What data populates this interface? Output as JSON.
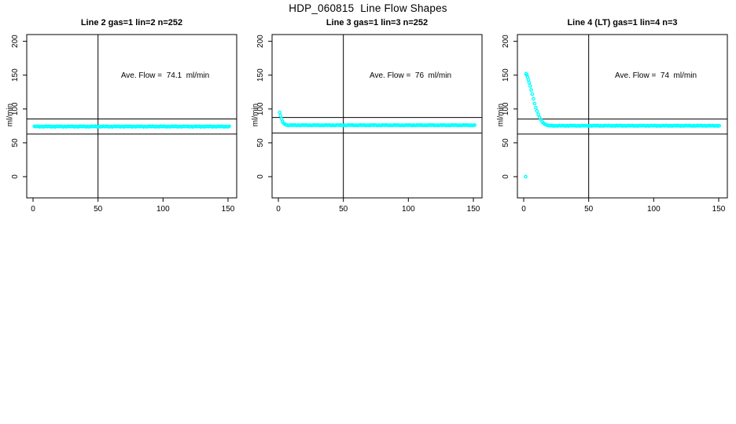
{
  "title": "HDP_060815  Line Flow Shapes",
  "colors": {
    "marker": "#00FFFF",
    "axis": "#000000",
    "background": "#FFFFFF"
  },
  "chart_data": [
    {
      "type": "scatter",
      "title": "Line 2 gas=1 lin=2 n=252",
      "annotation": "Ave. Flow =  74.1  ml/min",
      "ave_flow_ml_min": 74.1,
      "n": 252,
      "ylabel": "ml/min",
      "xlabel": "",
      "xticks": [
        0,
        50,
        100,
        150
      ],
      "yticks": [
        0,
        50,
        100,
        150,
        200
      ],
      "xlim": [
        -5,
        157
      ],
      "ylim": [
        -31,
        210
      ],
      "vline_x": 50,
      "hlines": [
        85.2,
        63.0
      ],
      "grid": false,
      "legend": "none",
      "series": [
        {
          "name": "flow",
          "segments": [
            {
              "x0": 1,
              "x1": 151,
              "step": 1,
              "y": 74.1,
              "jitter": 0.6
            }
          ]
        }
      ]
    },
    {
      "type": "scatter",
      "title": "Line 3 gas=1 lin=3 n=252",
      "annotation": "Ave. Flow =  76  ml/min",
      "ave_flow_ml_min": 76,
      "n": 252,
      "ylabel": "ml/min",
      "xlabel": "",
      "xticks": [
        0,
        50,
        100,
        150
      ],
      "yticks": [
        0,
        50,
        100,
        150,
        200
      ],
      "xlim": [
        -5,
        157
      ],
      "ylim": [
        -31,
        210
      ],
      "vline_x": 50,
      "hlines": [
        87.4,
        64.6
      ],
      "grid": false,
      "legend": "none",
      "series": [
        {
          "name": "flow",
          "segments": [
            {
              "pts": [
                [
                  1,
                  95
                ],
                [
                  1.7,
                  90
                ],
                [
                  2.4,
                  85.5
                ],
                [
                  3.2,
                  81.5
                ],
                [
                  4,
                  79
                ],
                [
                  5,
                  77.6
                ],
                [
                  6,
                  76.6
                ]
              ]
            },
            {
              "x0": 7,
              "x1": 151,
              "step": 1,
              "y": 76,
              "jitter": 0.45
            }
          ]
        }
      ]
    },
    {
      "type": "scatter",
      "title": "Line 4 (LT) gas=1 lin=4 n=3",
      "annotation": "Ave. Flow =  74  ml/min",
      "ave_flow_ml_min": 74,
      "n": 3,
      "ylabel": "ml/min",
      "xlabel": "",
      "xticks": [
        0,
        50,
        100,
        150
      ],
      "yticks": [
        0,
        50,
        100,
        150,
        200
      ],
      "xlim": [
        -5,
        157
      ],
      "ylim": [
        -31,
        210
      ],
      "vline_x": 50,
      "hlines": [
        85.1,
        62.9
      ],
      "grid": false,
      "legend": "none",
      "series": [
        {
          "name": "flow",
          "segments": [
            {
              "pts": [
                [
                  1.5,
                  0
                ]
              ]
            },
            {
              "pts": [
                [
                  1.8,
                  152
                ],
                [
                  2.4,
                  150
                ],
                [
                  3,
                  147
                ],
                [
                  3.6,
                  143
                ],
                [
                  4.2,
                  139
                ],
                [
                  5,
                  134
                ],
                [
                  5.8,
                  128
                ],
                [
                  6.6,
                  122
                ],
                [
                  7.5,
                  115
                ],
                [
                  8.4,
                  108
                ],
                [
                  9.3,
                  102
                ],
                [
                  10.2,
                  97
                ],
                [
                  11.2,
                  92
                ],
                [
                  12.2,
                  87.5
                ],
                [
                  13.2,
                  84
                ],
                [
                  14.2,
                  81
                ],
                [
                  15.2,
                  79
                ],
                [
                  16.3,
                  77.5
                ],
                [
                  17.4,
                  76.5
                ],
                [
                  18.5,
                  75.9
                ],
                [
                  19.6,
                  75.5
                ]
              ]
            },
            {
              "x0": 20.5,
              "x1": 151,
              "step": 1,
              "y": 75.2,
              "jitter": 0.45
            }
          ]
        }
      ]
    }
  ]
}
